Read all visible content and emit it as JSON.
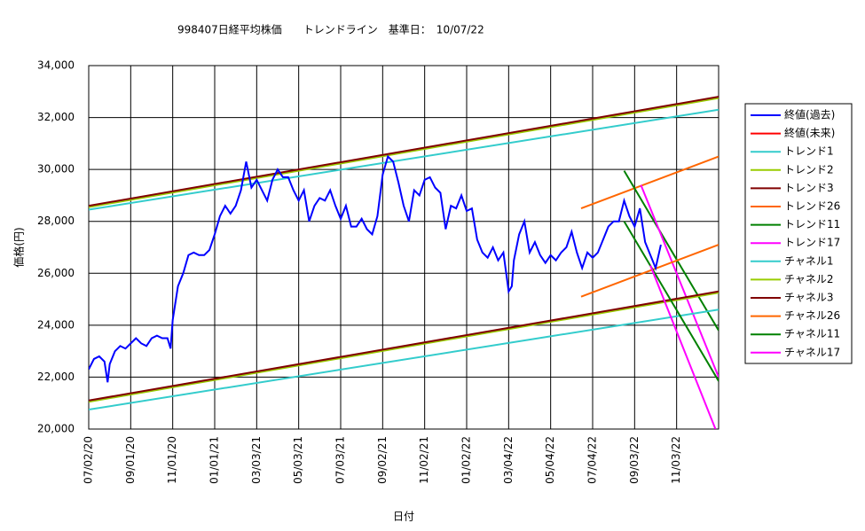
{
  "chart_data": {
    "type": "line",
    "title": "998407日経平均株価　　トレンドライン　基準日：　10/07/22",
    "x_label": "日付",
    "y_label": "価格(円)",
    "xlim": [
      0,
      600
    ],
    "ylim": [
      20000,
      34000
    ],
    "xticks": [
      {
        "value": 0,
        "label": "07/02/20"
      },
      {
        "value": 40,
        "label": "09/01/20"
      },
      {
        "value": 80,
        "label": "11/01/20"
      },
      {
        "value": 120,
        "label": "01/01/21"
      },
      {
        "value": 160,
        "label": "03/03/21"
      },
      {
        "value": 200,
        "label": "05/03/21"
      },
      {
        "value": 240,
        "label": "07/03/21"
      },
      {
        "value": 280,
        "label": "09/02/21"
      },
      {
        "value": 320,
        "label": "11/02/21"
      },
      {
        "value": 360,
        "label": "01/02/22"
      },
      {
        "value": 400,
        "label": "03/04/22"
      },
      {
        "value": 440,
        "label": "05/04/22"
      },
      {
        "value": 480,
        "label": "07/04/22"
      },
      {
        "value": 520,
        "label": "09/03/22"
      },
      {
        "value": 560,
        "label": "11/03/22"
      }
    ],
    "yticks": [
      {
        "value": 20000,
        "label": "20,000"
      },
      {
        "value": 22000,
        "label": "22,000"
      },
      {
        "value": 24000,
        "label": "24,000"
      },
      {
        "value": 26000,
        "label": "26,000"
      },
      {
        "value": 28000,
        "label": "28,000"
      },
      {
        "value": 30000,
        "label": "30,000"
      },
      {
        "value": 32000,
        "label": "32,000"
      },
      {
        "value": 34000,
        "label": "34,000"
      }
    ],
    "grid": true,
    "series": [
      {
        "name": "終値(過去)",
        "color": "#0000ff",
        "x": [
          0,
          5,
          10,
          15,
          18,
          20,
          25,
          30,
          35,
          40,
          45,
          50,
          55,
          60,
          65,
          70,
          75,
          78,
          80,
          85,
          90,
          95,
          100,
          105,
          110,
          115,
          120,
          125,
          130,
          135,
          140,
          145,
          150,
          155,
          160,
          165,
          170,
          175,
          180,
          185,
          190,
          195,
          200,
          205,
          210,
          215,
          220,
          225,
          230,
          235,
          240,
          245,
          250,
          255,
          260,
          265,
          270,
          275,
          280,
          285,
          290,
          295,
          300,
          305,
          310,
          315,
          320,
          325,
          330,
          335,
          340,
          345,
          350,
          355,
          360,
          365,
          370,
          375,
          380,
          385,
          390,
          395,
          400,
          403,
          405,
          410,
          415,
          420,
          425,
          430,
          435,
          440,
          445,
          450,
          455,
          460,
          465,
          470,
          475,
          480,
          485,
          490,
          495,
          500,
          505,
          510,
          515,
          520,
          525,
          530,
          535,
          540,
          545
        ],
        "values": [
          22300,
          22700,
          22800,
          22600,
          21800,
          22500,
          23000,
          23200,
          23100,
          23300,
          23500,
          23300,
          23200,
          23500,
          23600,
          23500,
          23500,
          23100,
          24200,
          25500,
          26000,
          26700,
          26800,
          26700,
          26700,
          26900,
          27500,
          28200,
          28600,
          28300,
          28600,
          29200,
          30300,
          29300,
          29600,
          29200,
          28800,
          29600,
          30000,
          29700,
          29700,
          29200,
          28800,
          29200,
          28000,
          28600,
          28900,
          28800,
          29200,
          28600,
          28100,
          28600,
          27800,
          27800,
          28100,
          27700,
          27500,
          28200,
          29800,
          30500,
          30300,
          29500,
          28600,
          28000,
          29200,
          29000,
          29600,
          29700,
          29300,
          29100,
          27700,
          28600,
          28500,
          29000,
          28400,
          28500,
          27300,
          26800,
          26600,
          27000,
          26500,
          26800,
          25300,
          25500,
          26500,
          27500,
          28000,
          26800,
          27200,
          26700,
          26400,
          26700,
          26500,
          26800,
          27000,
          27600,
          26800,
          26200,
          26800,
          26600,
          26800,
          27300,
          27800,
          28000,
          28000,
          28800,
          28200,
          27800,
          28500,
          27200,
          26700,
          26200,
          27100
        ]
      },
      {
        "name": "終値(未来)",
        "color": "#ff0000",
        "x": [],
        "values": []
      },
      {
        "name": "トレンド1",
        "color": "#33cccc",
        "x": [
          0,
          600
        ],
        "values": [
          28450,
          32300
        ]
      },
      {
        "name": "トレンド2",
        "color": "#99cc00",
        "x": [
          0,
          600
        ],
        "values": [
          28550,
          32750
        ]
      },
      {
        "name": "トレンド3",
        "color": "#800000",
        "x": [
          0,
          600
        ],
        "values": [
          28600,
          32800
        ]
      },
      {
        "name": "トレンド26",
        "color": "#ff6600",
        "x": [
          469,
          600
        ],
        "values": [
          28500,
          30500
        ]
      },
      {
        "name": "トレンド11",
        "color": "#008000",
        "x": [
          510,
          600
        ],
        "values": [
          29950,
          23800
        ]
      },
      {
        "name": "トレンド17",
        "color": "#ff00ff",
        "x": [
          526,
          600
        ],
        "values": [
          29400,
          22000
        ]
      },
      {
        "name": "チャネル1",
        "color": "#33cccc",
        "x": [
          0,
          600
        ],
        "values": [
          20750,
          24600
        ]
      },
      {
        "name": "チャネル2",
        "color": "#99cc00",
        "x": [
          0,
          600
        ],
        "values": [
          21050,
          25250
        ]
      },
      {
        "name": "チャネル3",
        "color": "#800000",
        "x": [
          0,
          600
        ],
        "values": [
          21100,
          25300
        ]
      },
      {
        "name": "チャネル26",
        "color": "#ff6600",
        "x": [
          469,
          600
        ],
        "values": [
          25100,
          27100
        ]
      },
      {
        "name": "チャネル11",
        "color": "#008000",
        "x": [
          510,
          600
        ],
        "values": [
          28000,
          21850
        ]
      },
      {
        "name": "チャネル17",
        "color": "#ff00ff",
        "x": [
          535,
          597
        ],
        "values": [
          26300,
          20000
        ]
      }
    ]
  }
}
